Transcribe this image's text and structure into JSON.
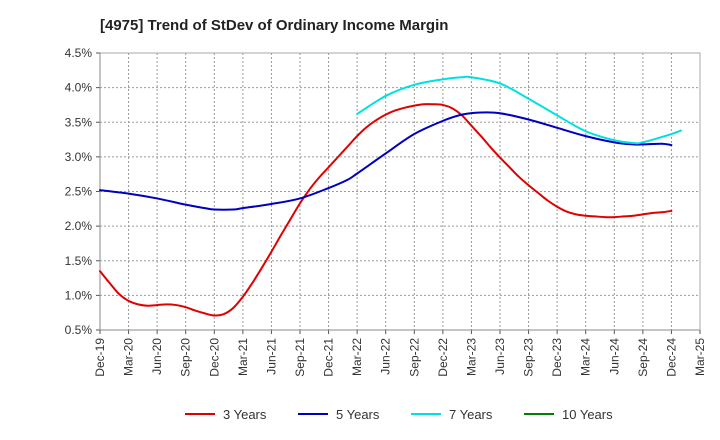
{
  "chart_data": {
    "type": "line",
    "title": "[4975]  Trend of StDev of Ordinary Income Margin",
    "xlabel": "",
    "ylabel": "",
    "x_tick_labels": [
      "Dec-19",
      "Mar-20",
      "Jun-20",
      "Sep-20",
      "Dec-20",
      "Mar-21",
      "Jun-21",
      "Sep-21",
      "Dec-21",
      "Mar-22",
      "Jun-22",
      "Sep-22",
      "Dec-22",
      "Mar-23",
      "Jun-23",
      "Sep-23",
      "Dec-23",
      "Mar-24",
      "Jun-24",
      "Sep-24",
      "Dec-24",
      "Mar-25"
    ],
    "y_tick_labels": [
      "0.5%",
      "1.0%",
      "1.5%",
      "2.0%",
      "2.5%",
      "3.0%",
      "3.5%",
      "4.0%",
      "4.5%"
    ],
    "ylim": [
      0.5,
      4.5
    ],
    "y_unit": "%",
    "grid": true,
    "legend_position": "bottom",
    "series": [
      {
        "name": "3 Years",
        "color": "#e00000",
        "points": [
          [
            "Dec-19",
            1.35
          ],
          [
            "Jan-20",
            1.18
          ],
          [
            "Feb-20",
            1.02
          ],
          [
            "Mar-20",
            0.92
          ],
          [
            "Apr-20",
            0.87
          ],
          [
            "May-20",
            0.85
          ],
          [
            "Jun-20",
            0.86
          ],
          [
            "Jul-20",
            0.87
          ],
          [
            "Aug-20",
            0.86
          ],
          [
            "Sep-20",
            0.83
          ],
          [
            "Oct-20",
            0.78
          ],
          [
            "Nov-20",
            0.74
          ],
          [
            "Dec-20",
            0.71
          ],
          [
            "Jan-21",
            0.73
          ],
          [
            "Feb-21",
            0.82
          ],
          [
            "Mar-21",
            0.98
          ],
          [
            "Apr-21",
            1.18
          ],
          [
            "May-21",
            1.4
          ],
          [
            "Jun-21",
            1.63
          ],
          [
            "Jul-21",
            1.87
          ],
          [
            "Aug-21",
            2.1
          ],
          [
            "Sep-21",
            2.33
          ],
          [
            "Oct-21",
            2.53
          ],
          [
            "Nov-21",
            2.7
          ],
          [
            "Dec-21",
            2.85
          ],
          [
            "Jan-22",
            3.0
          ],
          [
            "Feb-22",
            3.15
          ],
          [
            "Mar-22",
            3.3
          ],
          [
            "Apr-22",
            3.43
          ],
          [
            "May-22",
            3.53
          ],
          [
            "Jun-22",
            3.61
          ],
          [
            "Jul-22",
            3.67
          ],
          [
            "Aug-22",
            3.71
          ],
          [
            "Sep-22",
            3.74
          ],
          [
            "Oct-22",
            3.76
          ],
          [
            "Nov-22",
            3.76
          ],
          [
            "Dec-22",
            3.75
          ],
          [
            "Jan-23",
            3.7
          ],
          [
            "Feb-23",
            3.6
          ],
          [
            "Mar-23",
            3.45
          ],
          [
            "Apr-23",
            3.3
          ],
          [
            "May-23",
            3.14
          ],
          [
            "Jun-23",
            2.99
          ],
          [
            "Jul-23",
            2.85
          ],
          [
            "Aug-23",
            2.71
          ],
          [
            "Sep-23",
            2.59
          ],
          [
            "Oct-23",
            2.48
          ],
          [
            "Nov-23",
            2.37
          ],
          [
            "Dec-23",
            2.28
          ],
          [
            "Jan-24",
            2.21
          ],
          [
            "Feb-24",
            2.17
          ],
          [
            "Mar-24",
            2.15
          ],
          [
            "Apr-24",
            2.14
          ],
          [
            "May-24",
            2.13
          ],
          [
            "Jun-24",
            2.13
          ],
          [
            "Jul-24",
            2.14
          ],
          [
            "Aug-24",
            2.15
          ],
          [
            "Sep-24",
            2.17
          ],
          [
            "Oct-24",
            2.19
          ],
          [
            "Nov-24",
            2.2
          ],
          [
            "Dec-24",
            2.22
          ]
        ]
      },
      {
        "name": "5 Years",
        "color": "#0000c0",
        "points": [
          [
            "Dec-19",
            2.52
          ],
          [
            "Mar-20",
            2.47
          ],
          [
            "Jun-20",
            2.4
          ],
          [
            "Sep-20",
            2.31
          ],
          [
            "Nov-20",
            2.26
          ],
          [
            "Dec-20",
            2.24
          ],
          [
            "Feb-21",
            2.24
          ],
          [
            "Mar-21",
            2.26
          ],
          [
            "Jun-21",
            2.32
          ],
          [
            "Sep-21",
            2.4
          ],
          [
            "Dec-21",
            2.55
          ],
          [
            "Feb-22",
            2.67
          ],
          [
            "Mar-22",
            2.76
          ],
          [
            "Jun-22",
            3.05
          ],
          [
            "Sep-22",
            3.33
          ],
          [
            "Dec-22",
            3.52
          ],
          [
            "Feb-23",
            3.61
          ],
          [
            "Apr-23",
            3.64
          ],
          [
            "Jun-23",
            3.63
          ],
          [
            "Sep-23",
            3.54
          ],
          [
            "Dec-23",
            3.42
          ],
          [
            "Mar-24",
            3.3
          ],
          [
            "Jun-24",
            3.21
          ],
          [
            "Aug-24",
            3.18
          ],
          [
            "Sep-24",
            3.18
          ],
          [
            "Nov-24",
            3.19
          ],
          [
            "Dec-24",
            3.17
          ]
        ]
      },
      {
        "name": "7 Years",
        "color": "#00e0e0",
        "points": [
          [
            "Mar-22",
            3.62
          ],
          [
            "Jun-22",
            3.88
          ],
          [
            "Sep-22",
            4.04
          ],
          [
            "Dec-22",
            4.12
          ],
          [
            "Feb-23",
            4.15
          ],
          [
            "Mar-23",
            4.15
          ],
          [
            "Jun-23",
            4.06
          ],
          [
            "Sep-23",
            3.84
          ],
          [
            "Dec-23",
            3.6
          ],
          [
            "Mar-24",
            3.37
          ],
          [
            "Jun-24",
            3.24
          ],
          [
            "Aug-24",
            3.2
          ],
          [
            "Sep-24",
            3.21
          ],
          [
            "Dec-24",
            3.33
          ],
          [
            "Jan-25",
            3.38
          ]
        ]
      },
      {
        "name": "10 Years",
        "color": "#008000",
        "points": []
      }
    ]
  }
}
